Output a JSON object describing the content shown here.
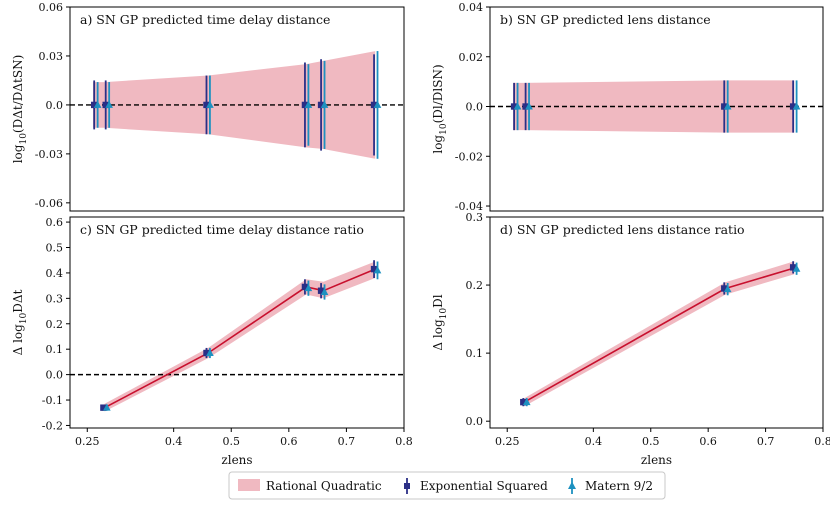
{
  "figure": {
    "legend": [
      {
        "key": "rq",
        "label": "Rational Quadratic",
        "color": "#f0b9c1"
      },
      {
        "key": "es",
        "label": "Exponential Squared",
        "color": "#2b2f86"
      },
      {
        "key": "mat",
        "label": "Matern 9/2",
        "color": "#1d91c0"
      }
    ],
    "colors": {
      "band": "#f0b9c1",
      "line": "#c8102e",
      "exp_sq": "#2b2f86",
      "matern": "#1d91c0",
      "zero_line": "#000000"
    }
  },
  "chart_data": [
    {
      "id": "a",
      "type": "errorbar",
      "title": "a) SN GP predicted time delay distance",
      "ylabel_main": "log",
      "ylabel_sub": "10",
      "ylabel_rest": "(DΔt/DΔtSN)",
      "xlabel": "",
      "ylim": [
        -0.065,
        0.06
      ],
      "yticks": [
        0.06,
        0.03,
        0.0,
        -0.03,
        -0.06
      ],
      "yticklabels": [
        "0.06",
        "0.03",
        "0.0",
        "-0.03",
        "-0.06"
      ],
      "xlim": [
        0.22,
        0.8
      ],
      "zero_line": true,
      "band": {
        "x": [
          0.26,
          0.28,
          0.46,
          0.63,
          0.66,
          0.75
        ],
        "lower": [
          -0.014,
          -0.014,
          -0.018,
          -0.026,
          -0.027,
          -0.033
        ],
        "upper": [
          0.014,
          0.014,
          0.018,
          0.025,
          0.027,
          0.033
        ]
      },
      "series": [
        {
          "name": "Exponential Squared",
          "x": [
            0.262,
            0.282,
            0.457,
            0.628,
            0.656,
            0.748
          ],
          "y": [
            0,
            0,
            0,
            0,
            0,
            0
          ],
          "err": [
            0.015,
            0.015,
            0.018,
            0.026,
            0.028,
            0.031
          ]
        },
        {
          "name": "Matern 9/2",
          "x": [
            0.268,
            0.288,
            0.463,
            0.634,
            0.662,
            0.754
          ],
          "y": [
            0,
            0,
            0,
            0,
            0,
            0
          ],
          "err": [
            0.014,
            0.014,
            0.018,
            0.025,
            0.027,
            0.033
          ]
        }
      ]
    },
    {
      "id": "b",
      "type": "errorbar",
      "title": "b) SN GP predicted lens distance",
      "ylabel_main": "log",
      "ylabel_sub": "10",
      "ylabel_rest": "(Dl/DlSN)",
      "xlabel": "",
      "ylim": [
        -0.042,
        0.04
      ],
      "yticks": [
        0.04,
        0.02,
        0.0,
        -0.02,
        -0.04
      ],
      "yticklabels": [
        "0.04",
        "0.02",
        "0.0",
        "-0.02",
        "-0.04"
      ],
      "xlim": [
        0.22,
        0.8
      ],
      "zero_line": true,
      "band": {
        "x": [
          0.26,
          0.28,
          0.63,
          0.75
        ],
        "lower": [
          -0.0095,
          -0.0095,
          -0.0105,
          -0.0105
        ],
        "upper": [
          0.0095,
          0.0095,
          0.0105,
          0.0105
        ]
      },
      "series": [
        {
          "name": "Exponential Squared",
          "x": [
            0.262,
            0.282,
            0.628,
            0.748
          ],
          "y": [
            0,
            0,
            0,
            0
          ],
          "err": [
            0.0095,
            0.0095,
            0.0105,
            0.0105
          ]
        },
        {
          "name": "Matern 9/2",
          "x": [
            0.268,
            0.288,
            0.634,
            0.754
          ],
          "y": [
            0,
            0,
            0,
            0
          ],
          "err": [
            0.0095,
            0.0095,
            0.0105,
            0.0105
          ]
        }
      ]
    },
    {
      "id": "c",
      "type": "errorbar",
      "title": "c) SN GP predicted time delay distance ratio",
      "ylabel_main": "Δ log",
      "ylabel_sub": "10",
      "ylabel_rest": "DΔt",
      "xlabel": "zlens",
      "ylim": [
        -0.21,
        0.62
      ],
      "yticks": [
        0.6,
        0.5,
        0.4,
        0.3,
        0.2,
        0.1,
        0.0,
        -0.1,
        -0.2
      ],
      "yticklabels": [
        "0.6",
        "0.5",
        "0.4",
        "0.3",
        "0.2",
        "0.1",
        "0.0",
        "-0.1",
        "-0.2"
      ],
      "xlim": [
        0.22,
        0.8
      ],
      "xticks": [
        0.25,
        0.4,
        0.5,
        0.6,
        0.7,
        0.8
      ],
      "xticklabels": [
        "0.25",
        "0.4",
        "0.5",
        "0.6",
        "0.7",
        "0.8"
      ],
      "zero_line": true,
      "band": {
        "x": [
          0.28,
          0.46,
          0.63,
          0.66,
          0.75
        ],
        "lower": [
          -0.145,
          0.065,
          0.315,
          0.3,
          0.38
        ],
        "upper": [
          -0.115,
          0.105,
          0.375,
          0.365,
          0.445
        ]
      },
      "line": {
        "x": [
          0.28,
          0.46,
          0.63,
          0.66,
          0.75
        ],
        "y": [
          -0.13,
          0.085,
          0.345,
          0.33,
          0.415
        ]
      },
      "series": [
        {
          "name": "Exponential Squared",
          "x": [
            0.278,
            0.457,
            0.628,
            0.656,
            0.748
          ],
          "y": [
            -0.13,
            0.085,
            0.345,
            0.33,
            0.415
          ],
          "err": [
            0.012,
            0.02,
            0.03,
            0.03,
            0.035
          ]
        },
        {
          "name": "Matern 9/2",
          "x": [
            0.284,
            0.463,
            0.634,
            0.662,
            0.754
          ],
          "y": [
            -0.13,
            0.085,
            0.34,
            0.325,
            0.41
          ],
          "err": [
            0.012,
            0.02,
            0.03,
            0.03,
            0.035
          ]
        }
      ]
    },
    {
      "id": "d",
      "type": "errorbar",
      "title": "d) SN GP predicted lens distance ratio",
      "ylabel_main": "Δ log",
      "ylabel_sub": "10",
      "ylabel_rest": "Dl",
      "xlabel": "zlens",
      "ylim": [
        -0.01,
        0.3
      ],
      "yticks": [
        0.3,
        0.2,
        0.1,
        0.0
      ],
      "yticklabels": [
        "0.3",
        "0.2",
        "0.1",
        "0.0"
      ],
      "xlim": [
        0.22,
        0.8
      ],
      "xticks": [
        0.25,
        0.4,
        0.5,
        0.6,
        0.7,
        0.8
      ],
      "xticklabels": [
        "0.25",
        "0.4",
        "0.5",
        "0.6",
        "0.7",
        "0.8"
      ],
      "zero_line": false,
      "band": {
        "x": [
          0.28,
          0.63,
          0.75
        ],
        "lower": [
          0.022,
          0.186,
          0.216
        ],
        "upper": [
          0.034,
          0.204,
          0.235
        ]
      },
      "line": {
        "x": [
          0.28,
          0.63,
          0.75
        ],
        "y": [
          0.028,
          0.195,
          0.225
        ]
      },
      "series": [
        {
          "name": "Exponential Squared",
          "x": [
            0.278,
            0.628,
            0.748
          ],
          "y": [
            0.028,
            0.195,
            0.226
          ],
          "err": [
            0.006,
            0.009,
            0.009
          ]
        },
        {
          "name": "Matern 9/2",
          "x": [
            0.284,
            0.634,
            0.754
          ],
          "y": [
            0.028,
            0.194,
            0.224
          ],
          "err": [
            0.006,
            0.009,
            0.009
          ]
        }
      ]
    }
  ]
}
